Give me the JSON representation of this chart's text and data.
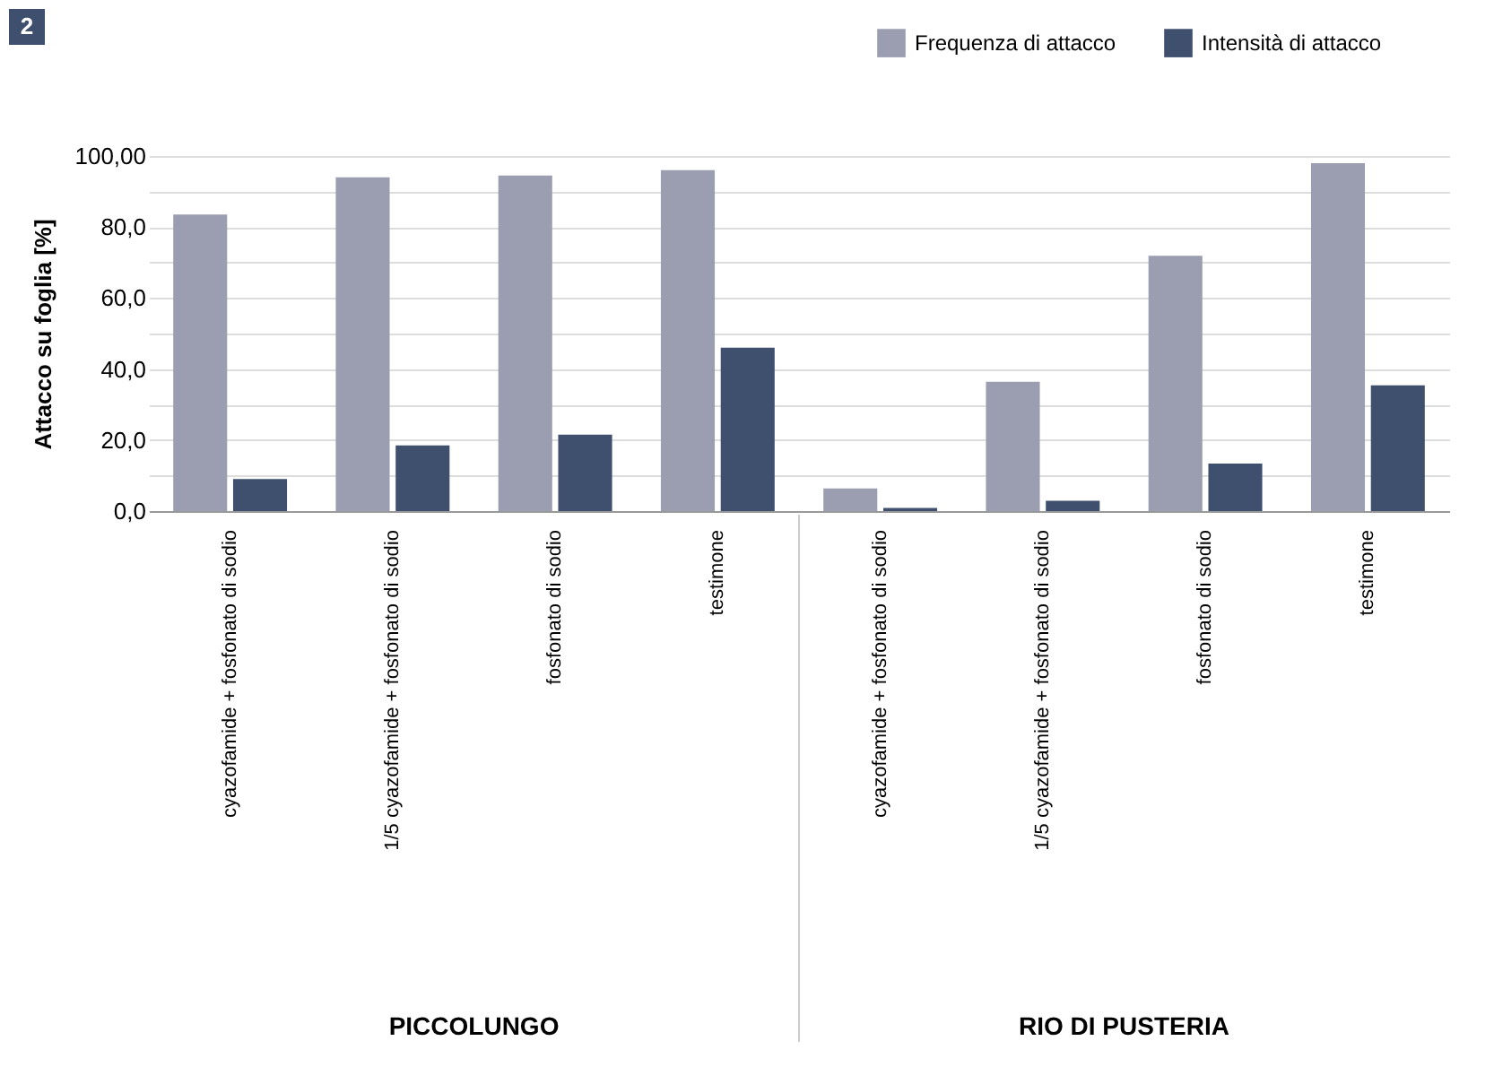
{
  "chart_data": {
    "type": "bar",
    "ylabel": "Attacco su foglia  [%]",
    "categories": [
      "cyazofamide + fosfonato di sodio",
      "1/5 cyazofamide + fosfonato di sodio",
      "fosfonato di sodio",
      "testimone",
      "cyazofamide + fosfonato di sodio",
      "1/5 cyazofamide + fosfonato di sodio",
      "fosfonato di sodio",
      "testimone"
    ],
    "series": [
      {
        "name": "Frequenza di attacco",
        "color": "#9b9db0",
        "values": [
          83.5,
          94,
          94.5,
          96,
          6.4,
          36.4,
          71.9,
          98
        ]
      },
      {
        "name": "Intensità di attacco",
        "color": "#3f4f6e",
        "values": [
          9,
          18.5,
          21.5,
          46,
          0.9,
          2.9,
          13.4,
          35.4
        ]
      }
    ],
    "ylim": [
      0,
      100
    ],
    "yticks": [
      {
        "value": 0,
        "label": "0,0"
      },
      {
        "value": 10,
        "label": null
      },
      {
        "value": 20,
        "label": "20,0"
      },
      {
        "value": 30,
        "label": null
      },
      {
        "value": 40,
        "label": "40,0"
      },
      {
        "value": 50,
        "label": null
      },
      {
        "value": 60,
        "label": "60,0"
      },
      {
        "value": 70,
        "label": null
      },
      {
        "value": 80,
        "label": "80,0"
      },
      {
        "value": 90,
        "label": null
      },
      {
        "value": 100,
        "label": "100,00"
      }
    ],
    "grid": "y",
    "legend": "top right",
    "annotations": [
      "2",
      "PICCOLUNGO",
      "RIO DI PUSTERIA"
    ]
  }
}
